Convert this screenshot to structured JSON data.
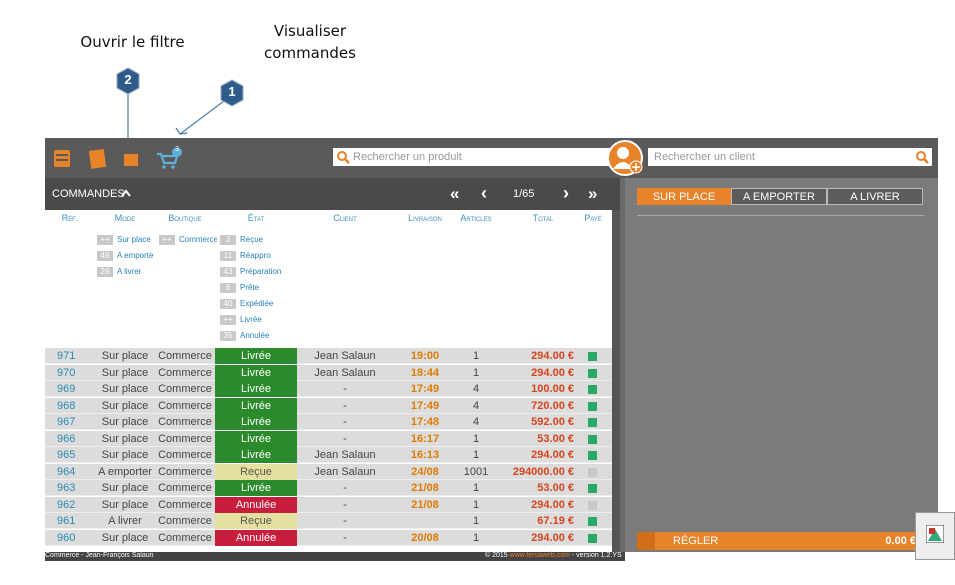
{
  "annotations": {
    "filter": "Ouvrir le filtre",
    "orders": "Visualiser commandes",
    "badge_filter": "2",
    "badge_orders": "1"
  },
  "toolbar": {
    "cart_count": "3",
    "product_search": "Rechercher un produit",
    "client_search": "Rechercher un client"
  },
  "orders": {
    "title": "COMMANDES",
    "first": "«",
    "prev": "‹",
    "page": "1/65",
    "next": "›",
    "last": "»",
    "columns": [
      "Réf.",
      "Mode",
      "Boutique",
      "État",
      "Client",
      "Livraison",
      "Articles",
      "Total",
      "Payé"
    ],
    "filters": {
      "mode": [
        {
          "count": "++",
          "label": "Sur place"
        },
        {
          "count": "49",
          "label": "A emporte"
        },
        {
          "count": "29",
          "label": "A livrer"
        }
      ],
      "shop": [
        {
          "count": "++",
          "label": "Commerce"
        }
      ],
      "state": [
        {
          "count": "3",
          "label": "Reçue"
        },
        {
          "count": "11",
          "label": "Réappro"
        },
        {
          "count": "43",
          "label": "Préparation"
        },
        {
          "count": "6",
          "label": "Prête"
        },
        {
          "count": "40",
          "label": "Expédiée"
        },
        {
          "count": "++",
          "label": "Livrée"
        },
        {
          "count": "35",
          "label": "Annulée"
        }
      ]
    },
    "rows": [
      [
        "971",
        "Sur place",
        "Commerce",
        "Livrée",
        "Jean Salaun",
        "19:00",
        "1",
        "294.00 €",
        true
      ],
      [
        "970",
        "Sur place",
        "Commerce",
        "Livrée",
        "Jean Salaun",
        "18:44",
        "1",
        "294.00 €",
        true
      ],
      [
        "969",
        "Sur place",
        "Commerce",
        "Livrée",
        "-",
        "17:49",
        "4",
        "100.00 €",
        true
      ],
      [
        "968",
        "Sur place",
        "Commerce",
        "Livrée",
        "-",
        "17:49",
        "4",
        "720.00 €",
        true
      ],
      [
        "967",
        "Sur place",
        "Commerce",
        "Livrée",
        "-",
        "17:48",
        "4",
        "592.00 €",
        true
      ],
      [
        "966",
        "Sur place",
        "Commerce",
        "Livrée",
        "-",
        "16:17",
        "1",
        "53.00 €",
        true
      ],
      [
        "965",
        "Sur place",
        "Commerce",
        "Livrée",
        "Jean Salaun",
        "16:13",
        "1",
        "294.00 €",
        true
      ],
      [
        "964",
        "A emporter",
        "Commerce",
        "Reçue",
        "Jean Salaun",
        "24/08",
        "1001",
        "294000.00 €",
        false
      ],
      [
        "963",
        "Sur place",
        "Commerce",
        "Livrée",
        "-",
        "21/08",
        "1",
        "53.00 €",
        true
      ],
      [
        "962",
        "Sur place",
        "Commerce",
        "Annulée",
        "-",
        "21/08",
        "1",
        "294.00 €",
        false
      ],
      [
        "961",
        "A livrer",
        "Commerce",
        "Reçue",
        "-",
        "",
        "1",
        "67.19 €",
        true
      ],
      [
        "960",
        "Sur place",
        "Commerce",
        "Annulée",
        "-",
        "20/08",
        "1",
        "294.00 €",
        true
      ]
    ]
  },
  "cart": {
    "tabs": [
      "SUR PLACE",
      "A EMPORTER",
      "A LIVRER"
    ],
    "pay": "RÉGLER",
    "amount": "0.00 €"
  },
  "footer": {
    "left": "Commerce - Jean-François Salaun",
    "copyright": "© 2015",
    "site": "www.tersaweb.com",
    "version": "- version 1.2.YS"
  }
}
